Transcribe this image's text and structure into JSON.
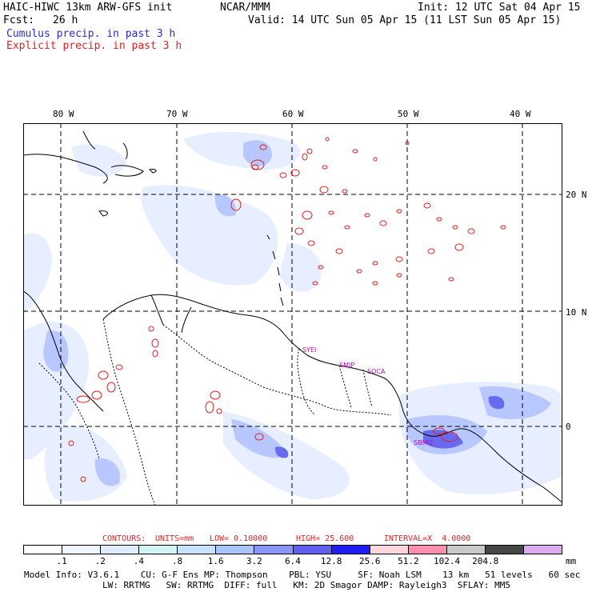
{
  "header": {
    "model": "HAIC-HIWC 13km ARW-GFS init",
    "org": "NCAR/MMM",
    "fcst_label": "Fcst:",
    "fcst_value": "26 h",
    "init": "Init: 12 UTC Sat 04 Apr 15",
    "valid": "Valid: 14 UTC Sun 05 Apr 15 (11 LST Sun 05 Apr 15)",
    "legend_cumulus": "Cumulus precip. in past 3 h",
    "legend_explicit": "Explicit precip. in past 3 h"
  },
  "axes": {
    "lon_labels": [
      "80 W",
      "70 W",
      "60 W",
      "50 W",
      "40 W"
    ],
    "lat_labels": [
      "20 N",
      "10 N",
      "0"
    ]
  },
  "map_labels": [
    "SYEI",
    "SMJP",
    "SOCA",
    "SBMQ"
  ],
  "contours": {
    "label": "CONTOURS:",
    "units": "UNITS=mm",
    "low": "LOW= 0.10000",
    "high": "HIGH= 25.600",
    "interval": "INTERVAL=X  4.0000"
  },
  "colorbar": {
    "colors": [
      "#ffffff",
      "#f0f6ff",
      "#e0ecff",
      "#d2f6f6",
      "#c6e2ff",
      "#a9c4ff",
      "#8a96f7",
      "#5f5ff0",
      "#1e1ef2",
      "#ffd6dc",
      "#ff8fae",
      "#c8c8c8",
      "#474747",
      "#ddaaf2"
    ],
    "labels": [
      ".1",
      ".2",
      ".4",
      ".8",
      "1.6",
      "3.2",
      "6.4",
      "12.8",
      "25.6",
      "51.2",
      "102.4",
      "204.8"
    ],
    "unit": "mm"
  },
  "footer": {
    "line1": "Model Info: V3.6.1    CU: G-F Ens MP: Thompson    PBL: YSU     SF: Noah LSM    13 km   51 levels   60 sec",
    "line2": "LW: RRTMG   SW: RRTMG  DIFF: full   KM: 2D Smagor DAMP: Rayleigh3  SFLAY: MM5"
  }
}
